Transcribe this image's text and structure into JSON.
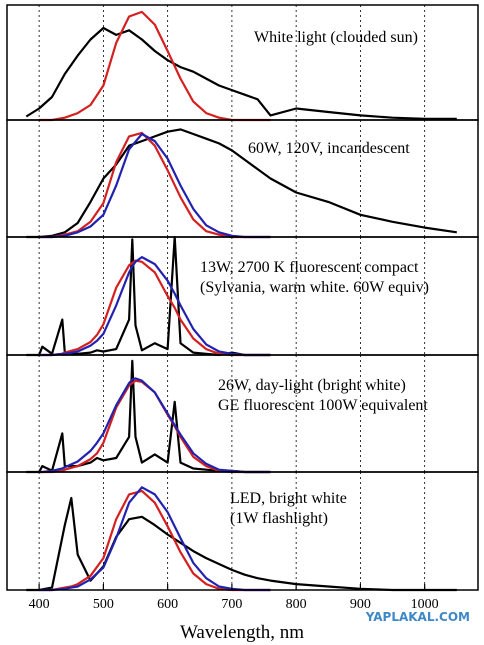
{
  "chart_data": [
    {
      "type": "line",
      "annotation": [
        "White light (clouded sun)"
      ],
      "xlim": [
        350,
        1083
      ],
      "ylim": [
        0,
        1
      ],
      "xticks": [
        400,
        500,
        600,
        700,
        800,
        900,
        1000
      ],
      "grid": true,
      "x": [
        380,
        400,
        420,
        440,
        460,
        480,
        500,
        520,
        540,
        560,
        580,
        600,
        620,
        640,
        660,
        680,
        700,
        720,
        740,
        760,
        800,
        850,
        900,
        950,
        1000,
        1050
      ],
      "series": [
        {
          "color": "#000000",
          "values": [
            0.03,
            0.1,
            0.2,
            0.4,
            0.56,
            0.7,
            0.8,
            0.74,
            0.78,
            0.7,
            0.6,
            0.52,
            0.46,
            0.42,
            0.36,
            0.3,
            0.26,
            0.22,
            0.18,
            0.04,
            0.1,
            0.07,
            0.04,
            0.02,
            0.01,
            0.01
          ]
        },
        {
          "color": "#d42020",
          "values": [
            null,
            0,
            0,
            0.02,
            0.06,
            0.13,
            0.3,
            0.67,
            0.9,
            0.94,
            0.83,
            0.6,
            0.36,
            0.16,
            0.06,
            0.02,
            0,
            0,
            0,
            0,
            null,
            null,
            null,
            null,
            null,
            null
          ]
        }
      ]
    },
    {
      "type": "line",
      "annotation": [
        "60W, 120V, incandescent"
      ],
      "xlim": [
        350,
        1083
      ],
      "ylim": [
        0,
        1
      ],
      "xticks": [
        400,
        500,
        600,
        700,
        800,
        900,
        1000
      ],
      "grid": true,
      "x": [
        380,
        400,
        420,
        440,
        460,
        480,
        500,
        520,
        540,
        560,
        580,
        600,
        620,
        640,
        660,
        680,
        700,
        720,
        740,
        760,
        800,
        850,
        900,
        950,
        1000,
        1050
      ],
      "series": [
        {
          "color": "#000000",
          "values": [
            0,
            0,
            0.01,
            0.04,
            0.12,
            0.3,
            0.5,
            0.62,
            0.78,
            0.82,
            0.86,
            0.9,
            0.92,
            0.88,
            0.84,
            0.8,
            0.74,
            0.66,
            0.58,
            0.5,
            0.38,
            0.3,
            0.19,
            0.13,
            0.08,
            0.04
          ]
        },
        {
          "color": "#d42020",
          "values": [
            null,
            0,
            0,
            0.02,
            0.05,
            0.13,
            0.29,
            0.64,
            0.86,
            0.89,
            0.78,
            0.57,
            0.34,
            0.15,
            0.05,
            0.02,
            0,
            0,
            0,
            0,
            null,
            null,
            null,
            null,
            null,
            null
          ]
        },
        {
          "color": "#2222b0",
          "values": [
            null,
            0,
            0,
            0.01,
            0.04,
            0.09,
            0.19,
            0.44,
            0.75,
            0.88,
            0.82,
            0.67,
            0.44,
            0.24,
            0.1,
            0.04,
            0.01,
            0,
            0,
            0,
            null,
            null,
            null,
            null,
            null,
            null
          ]
        }
      ]
    },
    {
      "type": "line",
      "annotation": [
        "13W, 2700 K fluorescent compact",
        "(Sylvania, warm white. 60W equiv)"
      ],
      "xlim": [
        350,
        1083
      ],
      "ylim": [
        0,
        1
      ],
      "xticks": [
        400,
        500,
        600,
        700,
        800,
        900,
        1000
      ],
      "grid": true,
      "x": [
        380,
        400,
        405,
        420,
        436,
        440,
        460,
        480,
        490,
        500,
        520,
        540,
        545,
        550,
        560,
        580,
        600,
        611,
        620,
        640,
        660,
        680,
        700,
        720,
        740,
        760,
        800,
        850,
        900,
        950,
        1000,
        1050
      ],
      "series": [
        {
          "color": "#000000",
          "values": [
            0,
            0,
            0.07,
            0.01,
            0.3,
            0.02,
            0.01,
            0.02,
            0.04,
            0.03,
            0.05,
            0.3,
            0.98,
            0.25,
            0.04,
            0.1,
            0.05,
            1,
            0.1,
            0.02,
            0.01,
            0,
            0.02,
            0,
            0,
            0,
            null,
            null,
            null,
            null,
            null,
            null
          ]
        },
        {
          "color": "#d42020",
          "values": [
            null,
            0,
            0,
            0,
            0.01,
            0.02,
            0.05,
            0.11,
            0.17,
            0.26,
            0.57,
            0.76,
            0.78,
            0.8,
            0.79,
            0.7,
            0.5,
            0.4,
            0.3,
            0.14,
            0.05,
            0.01,
            0,
            0,
            0,
            0,
            null,
            null,
            null,
            null,
            null,
            null
          ]
        },
        {
          "color": "#2222b0",
          "values": [
            null,
            0,
            0,
            0,
            0.01,
            0.01,
            0.03,
            0.08,
            0.12,
            0.18,
            0.42,
            0.7,
            0.75,
            0.79,
            0.83,
            0.77,
            0.63,
            0.52,
            0.42,
            0.22,
            0.09,
            0.03,
            0.01,
            0,
            0,
            0,
            null,
            null,
            null,
            null,
            null,
            null
          ]
        }
      ]
    },
    {
      "type": "line",
      "annotation": [
        "26W, day-light (bright white)",
        "GE fluorescent 100W equivalent"
      ],
      "xlim": [
        350,
        1083
      ],
      "ylim": [
        0,
        1
      ],
      "xticks": [
        400,
        500,
        600,
        700,
        800,
        900,
        1000
      ],
      "grid": true,
      "x": [
        380,
        400,
        405,
        420,
        436,
        440,
        460,
        480,
        490,
        500,
        520,
        540,
        545,
        550,
        560,
        580,
        600,
        611,
        620,
        640,
        660,
        680,
        700,
        720,
        740,
        760,
        800,
        850,
        900,
        950,
        1000,
        1050
      ],
      "series": [
        {
          "color": "#000000",
          "values": [
            0,
            0,
            0.05,
            0.01,
            0.33,
            0.05,
            0.05,
            0.08,
            0.12,
            0.1,
            0.12,
            0.3,
            0.95,
            0.3,
            0.08,
            0.15,
            0.08,
            0.6,
            0.08,
            0.03,
            0.02,
            0.01,
            0.01,
            0,
            0,
            0,
            null,
            null,
            null,
            null,
            null,
            null
          ]
        },
        {
          "color": "#d42020",
          "values": [
            null,
            0,
            0,
            0,
            0.01,
            0.02,
            0.05,
            0.11,
            0.16,
            0.25,
            0.55,
            0.74,
            0.76,
            0.78,
            0.77,
            0.68,
            0.49,
            0.39,
            0.3,
            0.13,
            0.05,
            0.01,
            0,
            0,
            0,
            0,
            null,
            null,
            null,
            null,
            null,
            null
          ]
        },
        {
          "color": "#2222b0",
          "values": [
            null,
            0,
            0,
            0.01,
            0.03,
            0.04,
            0.09,
            0.18,
            0.25,
            0.33,
            0.57,
            0.76,
            0.79,
            0.8,
            0.78,
            0.68,
            0.5,
            0.4,
            0.32,
            0.16,
            0.07,
            0.02,
            0.01,
            0,
            0,
            0,
            null,
            null,
            null,
            null,
            null,
            null
          ]
        }
      ]
    },
    {
      "type": "line",
      "annotation": [
        "LED, bright white",
        "(1W flashlight)"
      ],
      "xlim": [
        350,
        1083
      ],
      "ylim": [
        0,
        1
      ],
      "xticks": [
        400,
        500,
        600,
        700,
        800,
        900,
        1000
      ],
      "grid": true,
      "xlabel": "Wavelength, nm",
      "x": [
        380,
        400,
        420,
        440,
        450,
        460,
        480,
        500,
        520,
        540,
        560,
        580,
        600,
        620,
        640,
        660,
        680,
        700,
        720,
        740,
        760,
        800,
        850,
        900,
        950,
        1000,
        1050
      ],
      "series": [
        {
          "color": "#000000",
          "values": [
            0,
            0,
            0.02,
            0.55,
            0.78,
            0.3,
            0.08,
            0.2,
            0.45,
            0.6,
            0.62,
            0.55,
            0.47,
            0.4,
            0.33,
            0.27,
            0.22,
            0.17,
            0.13,
            0.1,
            0.08,
            0.05,
            0.03,
            0.01,
            0,
            0,
            0
          ]
        },
        {
          "color": "#d42020",
          "values": [
            null,
            0,
            0,
            0.02,
            0.03,
            0.05,
            0.12,
            0.27,
            0.6,
            0.81,
            0.84,
            0.74,
            0.54,
            0.32,
            0.14,
            0.05,
            0.01,
            0,
            0,
            0,
            0,
            null,
            null,
            null,
            null,
            null,
            null
          ]
        },
        {
          "color": "#2222b0",
          "values": [
            null,
            0,
            0,
            0.01,
            0.02,
            0.03,
            0.09,
            0.19,
            0.44,
            0.74,
            0.87,
            0.81,
            0.66,
            0.44,
            0.23,
            0.1,
            0.03,
            0.01,
            0,
            0,
            0,
            null,
            null,
            null,
            null,
            null,
            null
          ]
        }
      ]
    }
  ],
  "watermark": "YAPLAKAL.COM"
}
